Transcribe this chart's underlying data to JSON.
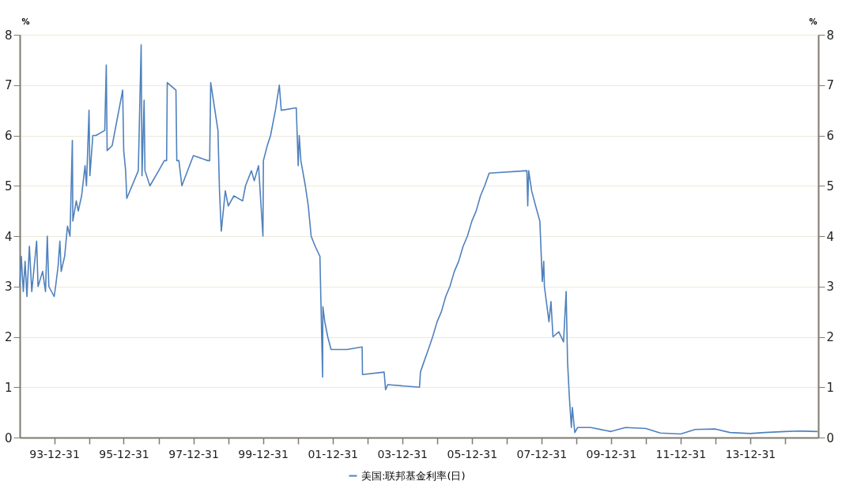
{
  "chart_data": {
    "type": "line",
    "ylabel": "%",
    "y2label": "%",
    "x": [
      "1993-01-04",
      "1993-01-20",
      "1993-02-10",
      "1993-03-01",
      "1993-03-20",
      "1993-04-15",
      "1993-05-10",
      "1993-06-30",
      "1993-07-15",
      "1993-09-01",
      "1993-10-01",
      "1993-10-20",
      "1993-11-05",
      "1993-12-31",
      "1994-01-15",
      "1994-02-10",
      "1994-03-01",
      "1994-03-15",
      "1994-04-20",
      "1994-05-20",
      "1994-06-15",
      "1994-07-10",
      "1994-07-15",
      "1994-08-20",
      "1994-09-10",
      "1994-10-15",
      "1994-11-20",
      "1994-12-05",
      "1995-01-01",
      "1995-01-10",
      "1995-02-10",
      "1995-03-15",
      "1995-06-15",
      "1995-07-01",
      "1995-07-10",
      "1995-09-01",
      "1995-12-20",
      "1995-12-31",
      "1996-01-20",
      "1996-02-01",
      "1996-06-01",
      "1996-07-01",
      "1996-07-10",
      "1996-08-01",
      "1996-08-10",
      "1996-10-01",
      "1997-01-01",
      "1997-03-01",
      "1997-03-25",
      "1997-04-01",
      "1997-07-01",
      "1997-07-10",
      "1997-08-01",
      "1997-09-01",
      "1997-12-31",
      "1998-06-01",
      "1998-06-20",
      "1998-07-01",
      "1998-09-15",
      "1998-10-01",
      "1998-10-20",
      "1998-12-01",
      "1999-01-01",
      "1999-03-01",
      "1999-06-01",
      "1999-07-01",
      "1999-09-01",
      "1999-10-01",
      "1999-11-15",
      "1999-12-31",
      "2000-01-05",
      "2000-02-15",
      "2000-03-20",
      "2000-05-10",
      "2000-06-20",
      "2000-07-10",
      "2000-12-15",
      "2001-01-04",
      "2001-01-15",
      "2001-02-01",
      "2001-03-20",
      "2001-04-20",
      "2001-05-20",
      "2001-07-01",
      "2001-08-20",
      "2001-09-17",
      "2001-09-20",
      "2001-10-10",
      "2001-11-10",
      "2001-12-15",
      "2002-06-01",
      "2002-11-06",
      "2002-11-10",
      "2003-06-25",
      "2003-07-10",
      "2003-08-01",
      "2004-06-30",
      "2004-07-10",
      "2004-08-15",
      "2004-10-01",
      "2004-11-15",
      "2005-01-01",
      "2005-02-15",
      "2005-04-01",
      "2005-05-15",
      "2005-07-01",
      "2005-08-15",
      "2005-10-01",
      "2005-11-15",
      "2006-01-01",
      "2006-02-15",
      "2006-04-01",
      "2006-05-15",
      "2006-07-01",
      "2007-08-01",
      "2007-08-10",
      "2007-08-20",
      "2007-09-20",
      "2007-11-01",
      "2007-12-15",
      "2008-01-10",
      "2008-01-25",
      "2008-02-01",
      "2008-03-20",
      "2008-04-10",
      "2008-05-01",
      "2008-07-01",
      "2008-08-20",
      "2008-09-16",
      "2008-10-01",
      "2008-10-20",
      "2008-11-10",
      "2008-11-20",
      "2008-12-16",
      "2009-01-15",
      "2009-06-01",
      "2009-12-31",
      "2010-06-01",
      "2010-12-31",
      "2011-06-01",
      "2011-12-31",
      "2012-06-01",
      "2012-12-31",
      "2013-06-01",
      "2013-12-31",
      "2014-06-01",
      "2014-12-31",
      "2015-06-01",
      "2015-12-10"
    ],
    "series": [
      {
        "name": "美国:联邦基金利率(日)",
        "color": "#4f81bd",
        "values": [
          3.0,
          3.6,
          2.9,
          3.5,
          2.8,
          3.8,
          2.9,
          3.9,
          3.0,
          3.3,
          2.9,
          4.0,
          3.0,
          2.8,
          3.0,
          3.4,
          3.9,
          3.3,
          3.6,
          4.2,
          4.0,
          5.9,
          4.3,
          4.7,
          4.5,
          4.8,
          5.4,
          5.0,
          6.5,
          5.2,
          6.0,
          6.0,
          6.1,
          7.4,
          5.7,
          5.8,
          6.9,
          5.7,
          5.3,
          4.75,
          5.3,
          7.8,
          5.2,
          6.7,
          5.3,
          5.0,
          5.3,
          5.5,
          5.5,
          7.05,
          6.9,
          5.5,
          5.5,
          5.0,
          5.6,
          5.5,
          5.5,
          7.05,
          6.1,
          4.9,
          4.1,
          4.9,
          4.6,
          4.8,
          4.7,
          5.0,
          5.3,
          5.1,
          5.4,
          4.0,
          5.5,
          5.8,
          6.0,
          6.5,
          7.0,
          6.5,
          6.55,
          5.4,
          6.0,
          5.5,
          5.0,
          4.6,
          4.0,
          3.8,
          3.6,
          1.2,
          2.6,
          2.3,
          2.0,
          1.75,
          1.75,
          1.8,
          1.25,
          1.3,
          0.95,
          1.05,
          1.0,
          1.3,
          1.5,
          1.75,
          2.0,
          2.3,
          2.5,
          2.8,
          3.0,
          3.3,
          3.5,
          3.8,
          4.0,
          4.3,
          4.5,
          4.8,
          5.0,
          5.25,
          5.3,
          4.6,
          5.3,
          4.9,
          4.6,
          4.3,
          3.1,
          3.5,
          3.0,
          2.3,
          2.7,
          2.0,
          2.1,
          1.9,
          2.9,
          1.5,
          0.8,
          0.2,
          0.6,
          0.1,
          0.2,
          0.2,
          0.12,
          0.2,
          0.18,
          0.09,
          0.07,
          0.16,
          0.17,
          0.1,
          0.08,
          0.1,
          0.12,
          0.13,
          0.12
        ]
      }
    ],
    "xlim": [
      "1993-01-04",
      "2015-12-15"
    ],
    "xticks": [
      {
        "value": "1993-12-31",
        "label": "93-12-31"
      },
      {
        "value": "1994-12-31",
        "label": null
      },
      {
        "value": "1995-12-31",
        "label": "95-12-31"
      },
      {
        "value": "1996-12-31",
        "label": null
      },
      {
        "value": "1997-12-31",
        "label": "97-12-31"
      },
      {
        "value": "1998-12-31",
        "label": null
      },
      {
        "value": "1999-12-31",
        "label": "99-12-31"
      },
      {
        "value": "2000-12-31",
        "label": null
      },
      {
        "value": "2001-12-31",
        "label": "01-12-31"
      },
      {
        "value": "2002-12-31",
        "label": null
      },
      {
        "value": "2003-12-31",
        "label": "03-12-31"
      },
      {
        "value": "2004-12-31",
        "label": null
      },
      {
        "value": "2005-12-31",
        "label": "05-12-31"
      },
      {
        "value": "2006-12-31",
        "label": null
      },
      {
        "value": "2007-12-31",
        "label": "07-12-31"
      },
      {
        "value": "2008-12-31",
        "label": null
      },
      {
        "value": "2009-12-31",
        "label": "09-12-31"
      },
      {
        "value": "2010-12-31",
        "label": null
      },
      {
        "value": "2011-12-31",
        "label": "11-12-31"
      },
      {
        "value": "2012-12-31",
        "label": null
      },
      {
        "value": "2013-12-31",
        "label": "13-12-31"
      },
      {
        "value": "2014-12-31",
        "label": null
      }
    ],
    "ylim": [
      0,
      8
    ],
    "yticks": [
      0,
      1,
      2,
      3,
      4,
      5,
      6,
      7,
      8
    ],
    "y2lim": [
      0,
      8
    ],
    "y2ticks": [
      0,
      1,
      2,
      3,
      4,
      5,
      6,
      7,
      8
    ],
    "grid": "y",
    "legend": "bottom",
    "line_style": "solid",
    "marker": "none"
  }
}
